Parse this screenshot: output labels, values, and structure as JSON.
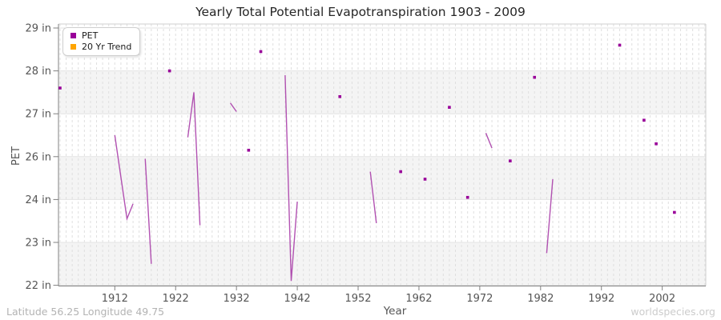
{
  "title": "Yearly Total Potential Evapotranspiration 1903 - 2009",
  "legend": {
    "items": [
      {
        "label": "PET",
        "color": "#990099"
      },
      {
        "label": "20 Yr Trend",
        "color": "#FFA500"
      }
    ]
  },
  "footer": {
    "coords": "Latitude 56.25 Longitude 49.75",
    "watermark": "worldspecies.org"
  },
  "chart_data": {
    "type": "line",
    "title": "Yearly Total Potential Evapotranspiration 1903 - 2009",
    "xlabel": "Year",
    "ylabel": "PET",
    "unit": "in",
    "xlim": [
      1903,
      2009
    ],
    "ylim": [
      22,
      29
    ],
    "x_ticks": [
      1912,
      1922,
      1932,
      1942,
      1952,
      1962,
      1972,
      1982,
      1992,
      2002
    ],
    "y_ticks": [
      {
        "label": "29 in",
        "value": 29
      },
      {
        "label": "28 in",
        "value": 28
      },
      {
        "label": "27 in",
        "value": 27
      },
      {
        "label": "26 in",
        "value": 26
      },
      {
        "label": "24 in",
        "value": 24
      },
      {
        "label": "23 in",
        "value": 23
      },
      {
        "label": "22 in",
        "value": 22
      }
    ],
    "grid": {
      "horizontal": "solid",
      "vertical": "dashed-every-year",
      "alternating_bands": true
    },
    "legend_position": "top-left",
    "series": [
      {
        "name": "PET",
        "marker_color": "#990099",
        "line_color": "#aa3faa",
        "points": [
          [
            1903,
            27.6
          ],
          [
            1921,
            28.0
          ],
          [
            1934,
            26.15
          ],
          [
            1936,
            28.45
          ],
          [
            1949,
            27.4
          ],
          [
            1959,
            25.3
          ],
          [
            1963,
            24.95
          ],
          [
            1967,
            27.15
          ],
          [
            1970,
            24.1
          ],
          [
            1977,
            25.8
          ],
          [
            1981,
            27.85
          ],
          [
            1995,
            28.6
          ],
          [
            1999,
            26.85
          ],
          [
            2001,
            26.3
          ],
          [
            2004,
            23.7
          ]
        ],
        "segments": [
          [
            [
              1912,
              26.5
            ],
            [
              1914,
              23.55
            ],
            [
              1915,
              23.9
            ]
          ],
          [
            [
              1917,
              25.9
            ],
            [
              1918,
              22.5
            ]
          ],
          [
            [
              1924,
              26.45
            ],
            [
              1925,
              27.5
            ],
            [
              1926,
              23.4
            ]
          ],
          [
            [
              1931,
              27.25
            ],
            [
              1932,
              27.05
            ]
          ],
          [
            [
              1940,
              27.9
            ],
            [
              1941,
              22.1
            ],
            [
              1942,
              23.95
            ]
          ],
          [
            [
              1954,
              25.3
            ],
            [
              1955,
              23.45
            ]
          ],
          [
            [
              1973,
              26.55
            ],
            [
              1974,
              26.2
            ]
          ],
          [
            [
              1983,
              22.75
            ],
            [
              1984,
              24.95
            ]
          ]
        ]
      },
      {
        "name": "20 Yr Trend",
        "marker_color": "#FFA500",
        "line_color": "#FFA500",
        "points": [],
        "segments": []
      }
    ]
  }
}
